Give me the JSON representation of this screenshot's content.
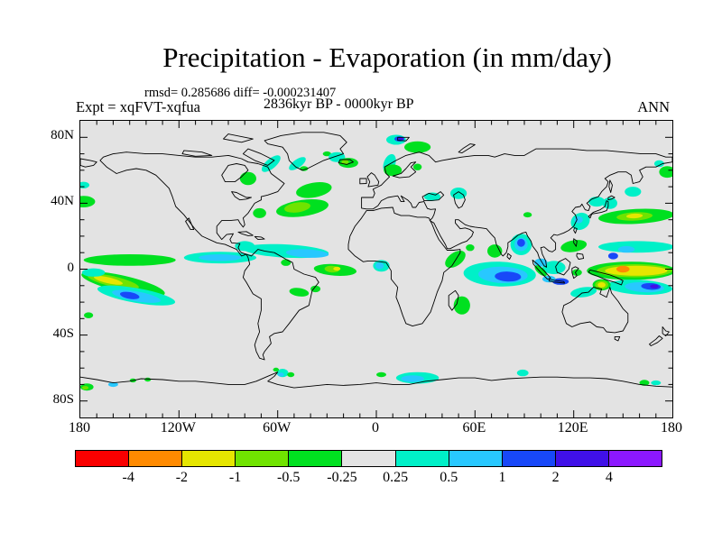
{
  "header": {
    "title": "Precipitation - Evaporation (in mm/day)",
    "stats_line": "rmsd= 0.285686 diff= -0.000231407",
    "period_line": "2836kyr BP - 0000kyr BP",
    "experiment_label": "Expt = xqFVT-xqfua",
    "season_label": "ANN"
  },
  "axes": {
    "lon_ticks": [
      {
        "label": "180",
        "lon": -180
      },
      {
        "label": "120W",
        "lon": -120
      },
      {
        "label": "60W",
        "lon": -60
      },
      {
        "label": "0",
        "lon": 0
      },
      {
        "label": "60E",
        "lon": 60
      },
      {
        "label": "120E",
        "lon": 120
      },
      {
        "label": "180",
        "lon": 180
      }
    ],
    "lat_ticks": [
      {
        "label": "80N",
        "lat": 80
      },
      {
        "label": "40N",
        "lat": 40
      },
      {
        "label": "0",
        "lat": 0
      },
      {
        "label": "40S",
        "lat": -40
      },
      {
        "label": "80S",
        "lat": -80
      }
    ],
    "minor_tick_step_deg": 10
  },
  "colorbar": {
    "labels": [
      "-4",
      "-2",
      "-1",
      "-0.5",
      "-0.25",
      "0.25",
      "0.5",
      "1",
      "2",
      "4"
    ],
    "colors": [
      "#fa0000",
      "#ff8a00",
      "#e6e600",
      "#70e300",
      "#00e020",
      "#e3e3e3",
      "#00f0c8",
      "#28c8ff",
      "#1848f8",
      "#4010e8",
      "#8c18ff"
    ]
  },
  "chart_data": {
    "type": "heatmap",
    "subtype": "filled_contour_world_map",
    "title": "Precipitation - Evaporation (in mm/day)",
    "units": "mm/day",
    "statistics": {
      "rmsd": 0.285686,
      "diff": -0.000231407
    },
    "comparison": "2836kyr BP - 0000kyr BP",
    "experiment": "xqFVT-xqfua",
    "season": "ANN",
    "projection": "equirectangular",
    "lon_range": [
      -180,
      180
    ],
    "lat_range": [
      -90,
      90
    ],
    "contour_levels": [
      -4,
      -2,
      -1,
      -0.5,
      -0.25,
      0.25,
      0.5,
      1,
      2,
      4
    ],
    "background_band": "-0.25..0.25",
    "band_meaning": [
      "< -4",
      "-4..-2",
      "-2..-1",
      "-1..-0.5",
      "-0.5..-0.25",
      "-0.25..0.25",
      "0.25..0.5",
      "0.5..1",
      "1..2",
      "2..4",
      "> 4"
    ],
    "region_format": [
      "center_lon",
      "center_lat",
      "rx_deg",
      "ry_deg",
      "rotation_deg",
      "band_index"
    ],
    "anomaly_regions": [
      [
        -45,
        37,
        16,
        5,
        -8,
        4
      ],
      [
        -48,
        37.5,
        8,
        3,
        -8,
        3
      ],
      [
        -38,
        48,
        11,
        4.5,
        -10,
        4
      ],
      [
        -71,
        34,
        4,
        3,
        0,
        4
      ],
      [
        -55,
        11,
        26,
        4,
        3,
        6
      ],
      [
        -42,
        9.5,
        13,
        2.5,
        3,
        7
      ],
      [
        -80,
        14,
        6,
        3,
        0,
        6
      ],
      [
        -25,
        -0.5,
        13,
        3.5,
        4,
        4
      ],
      [
        -27,
        0,
        4.5,
        2,
        4,
        3
      ],
      [
        -24,
        0.3,
        2.2,
        1.2,
        0,
        2
      ],
      [
        -55,
        4,
        3,
        2,
        0,
        4
      ],
      [
        -47,
        -14,
        6,
        2.5,
        8,
        4
      ],
      [
        -37,
        -12,
        3,
        2,
        0,
        4
      ],
      [
        -150,
        5.5,
        28,
        3.5,
        0,
        4
      ],
      [
        -95,
        7,
        22,
        3.5,
        0,
        6
      ],
      [
        -95,
        7,
        13,
        2,
        0,
        7
      ],
      [
        -154,
        -9,
        26,
        5,
        13,
        4
      ],
      [
        -160,
        -7.5,
        16,
        3.2,
        13,
        3
      ],
      [
        -163,
        -6.8,
        9,
        1.8,
        13,
        2
      ],
      [
        -146,
        -16,
        24,
        4.5,
        10,
        6
      ],
      [
        -146,
        -16.5,
        15,
        3,
        10,
        7
      ],
      [
        -150,
        -16,
        6,
        2,
        10,
        8
      ],
      [
        -172,
        -2,
        7,
        2.5,
        0,
        6
      ],
      [
        -175,
        -28,
        2.8,
        1.8,
        0,
        4
      ],
      [
        -178,
        41,
        7,
        3.5,
        0,
        4
      ],
      [
        -178,
        51,
        3.5,
        2,
        0,
        6
      ],
      [
        -78,
        55,
        5,
        4,
        0,
        4
      ],
      [
        -64,
        64,
        7,
        3,
        -40,
        6
      ],
      [
        -48,
        64,
        6,
        2.5,
        -35,
        6
      ],
      [
        -30,
        70,
        2.5,
        1.5,
        0,
        4
      ],
      [
        -44,
        61,
        2.5,
        1.5,
        0,
        4
      ],
      [
        -24,
        68,
        5,
        3,
        0,
        6
      ],
      [
        -17,
        64.5,
        6,
        3,
        0,
        4
      ],
      [
        -19,
        65,
        2.2,
        1.4,
        0,
        3
      ],
      [
        12,
        78.5,
        6,
        3,
        0,
        6
      ],
      [
        14,
        79,
        3,
        1.6,
        0,
        8
      ],
      [
        15,
        79.3,
        1.6,
        0.9,
        0,
        9
      ],
      [
        25,
        74,
        8,
        3.5,
        0,
        4
      ],
      [
        8,
        64,
        3.5,
        6,
        20,
        6
      ],
      [
        10,
        60,
        5.5,
        3.5,
        0,
        4
      ],
      [
        25,
        62,
        2.6,
        2,
        0,
        4
      ],
      [
        34,
        44,
        5,
        2.5,
        0,
        6
      ],
      [
        50,
        46,
        5,
        3.5,
        0,
        6
      ],
      [
        92,
        33,
        2.6,
        1.6,
        0,
        4
      ],
      [
        88,
        15,
        6.5,
        6.5,
        0,
        6
      ],
      [
        88,
        15,
        4,
        4,
        0,
        7
      ],
      [
        88,
        16,
        2.4,
        2.4,
        0,
        8
      ],
      [
        124,
        29,
        6,
        5,
        -30,
        6
      ],
      [
        123,
        30,
        2.6,
        2,
        0,
        7
      ],
      [
        134,
        41,
        5,
        3,
        0,
        6
      ],
      [
        142,
        40,
        4.5,
        3.5,
        0,
        6
      ],
      [
        156,
        47,
        5,
        3,
        0,
        6
      ],
      [
        172,
        64,
        3,
        2,
        0,
        6
      ],
      [
        177,
        59,
        5,
        3.5,
        0,
        4
      ],
      [
        158,
        32,
        23,
        4.5,
        -3,
        4
      ],
      [
        157,
        32,
        11,
        2.5,
        -3,
        3
      ],
      [
        157,
        32.3,
        5,
        1.4,
        -3,
        2
      ],
      [
        158,
        13.5,
        23,
        3.5,
        0,
        6
      ],
      [
        152,
        12,
        5,
        2,
        0,
        7
      ],
      [
        144,
        8,
        3,
        2,
        0,
        8
      ],
      [
        120,
        14,
        8,
        3.5,
        -10,
        4
      ],
      [
        155,
        -1,
        27,
        5.5,
        0,
        4
      ],
      [
        157,
        -1,
        23,
        4,
        0,
        3
      ],
      [
        158,
        -1,
        19,
        3,
        0,
        2
      ],
      [
        150,
        0,
        4,
        2,
        0,
        1
      ],
      [
        160,
        -11,
        20,
        4.5,
        3,
        6
      ],
      [
        163,
        -11,
        12,
        3,
        3,
        7
      ],
      [
        167,
        -10.5,
        6,
        2,
        3,
        8
      ],
      [
        169,
        -10.5,
        2.6,
        1.2,
        0,
        9
      ],
      [
        137,
        -9.5,
        5.5,
        3.4,
        0,
        4
      ],
      [
        137,
        -9.5,
        4,
        2.6,
        0,
        3
      ],
      [
        137,
        -9.5,
        2.4,
        1.6,
        0,
        2
      ],
      [
        126,
        -14,
        8,
        3,
        -8,
        6
      ],
      [
        108,
        1,
        7,
        4,
        0,
        6
      ],
      [
        100,
        4,
        4,
        2.5,
        0,
        7
      ],
      [
        112,
        -7.5,
        5,
        2,
        0,
        8
      ],
      [
        105,
        -6,
        4,
        2,
        0,
        7
      ],
      [
        100,
        -1,
        4.5,
        2,
        40,
        4
      ],
      [
        122,
        -2,
        3,
        2,
        0,
        4
      ],
      [
        75,
        -3,
        22,
        7.5,
        2,
        6
      ],
      [
        77,
        -3.5,
        15,
        5,
        2,
        7
      ],
      [
        80,
        -4.5,
        8,
        3,
        2,
        8
      ],
      [
        48,
        6,
        7,
        4,
        -35,
        4
      ],
      [
        57,
        13,
        2.6,
        2,
        0,
        4
      ],
      [
        72,
        11,
        4.5,
        4,
        0,
        4
      ],
      [
        52,
        -22,
        5,
        5.5,
        0,
        4
      ],
      [
        3,
        2,
        5,
        3.5,
        0,
        6
      ],
      [
        2,
        2,
        2.5,
        2,
        0,
        7
      ],
      [
        25,
        -66,
        13,
        3.5,
        0,
        6
      ],
      [
        22,
        -66.5,
        7,
        2,
        0,
        7
      ],
      [
        3,
        -64,
        3,
        1.5,
        0,
        4
      ],
      [
        89,
        -63,
        3.5,
        2,
        0,
        6
      ],
      [
        163,
        -69,
        3,
        1.8,
        0,
        4
      ],
      [
        170,
        -69,
        3,
        1.5,
        0,
        6
      ],
      [
        -176,
        -71.5,
        4,
        2.2,
        0,
        4
      ],
      [
        -177,
        -72,
        2,
        1.1,
        0,
        3
      ],
      [
        -160,
        -70,
        3,
        1.5,
        0,
        7
      ],
      [
        -148,
        -67.5,
        2,
        1.2,
        0,
        4
      ],
      [
        -139,
        -67,
        2,
        1.2,
        0,
        4
      ],
      [
        -57,
        -63,
        3.5,
        2.5,
        0,
        6
      ],
      [
        -58,
        -64,
        1.8,
        1.2,
        0,
        7
      ],
      [
        -52,
        -64,
        2.2,
        1.5,
        0,
        4
      ],
      [
        -61,
        -61,
        1.8,
        1.2,
        0,
        4
      ]
    ]
  }
}
